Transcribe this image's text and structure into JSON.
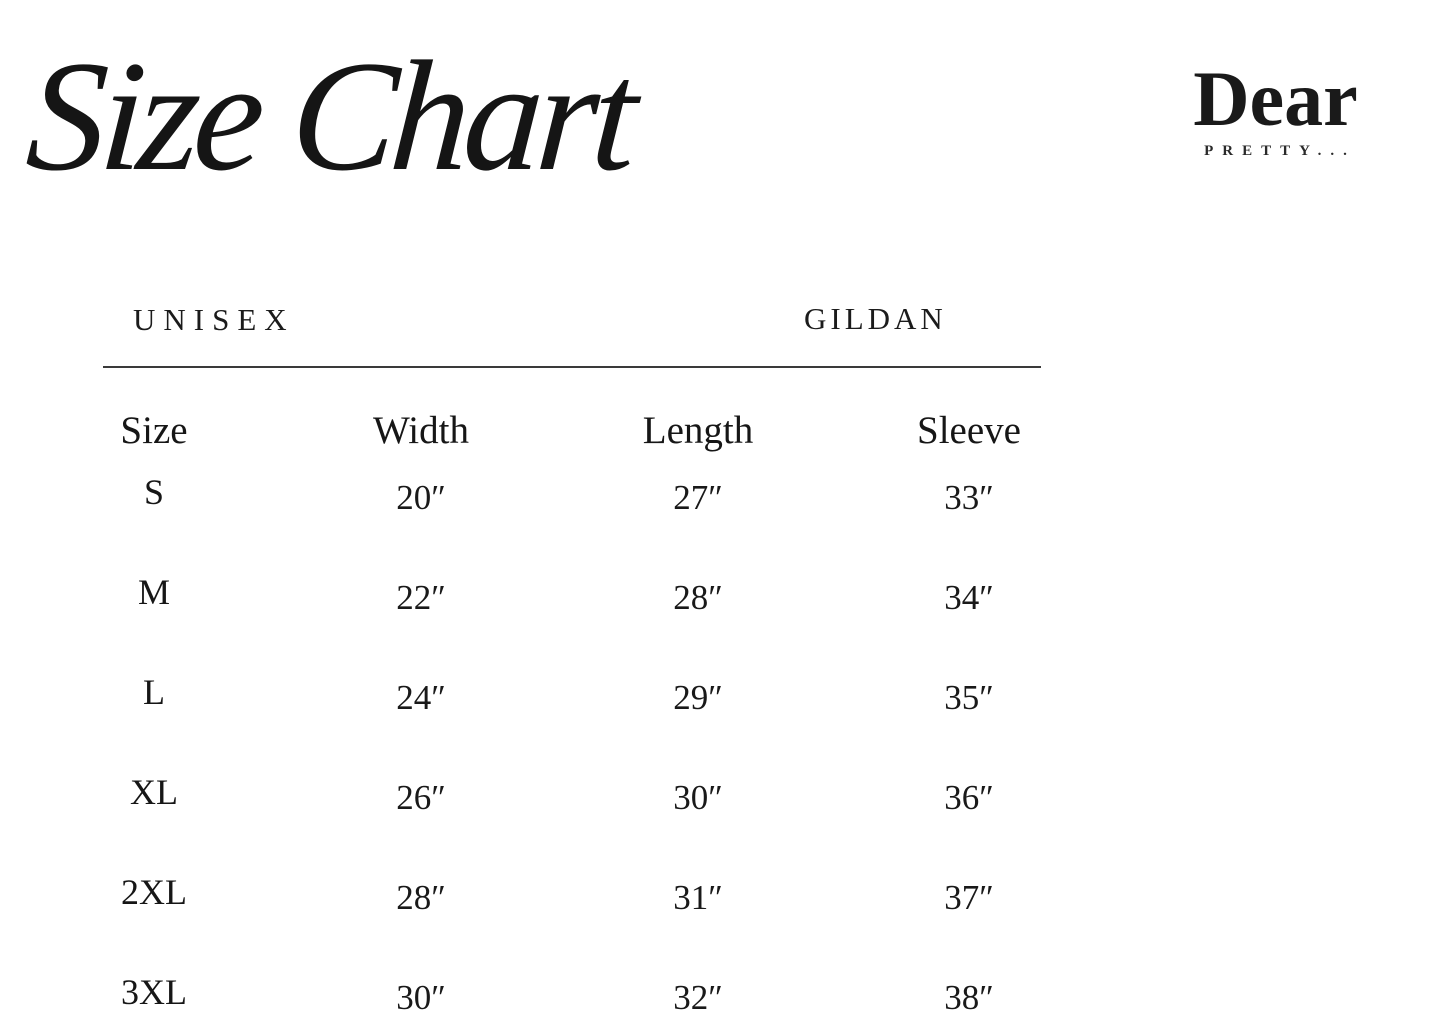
{
  "page": {
    "background": "#ffffff",
    "ink": "#1b1b1b",
    "divider_color": "#3a3a3a"
  },
  "title": "Size Chart",
  "logo": {
    "name": "Dear",
    "tagline": "PRETTY..."
  },
  "table": {
    "category": "UNISEX",
    "brand": "GILDAN",
    "columns": [
      "Size",
      "Width",
      "Length",
      "Sleeve"
    ],
    "rows": [
      {
        "size": "S",
        "width": "20″",
        "length": "27″",
        "sleeve": "33″"
      },
      {
        "size": "M",
        "width": "22″",
        "length": "28″",
        "sleeve": "34″"
      },
      {
        "size": "L",
        "width": "24″",
        "length": "29″",
        "sleeve": "35″"
      },
      {
        "size": "XL",
        "width": "26″",
        "length": "30″",
        "sleeve": "36″"
      },
      {
        "size": "2XL",
        "width": "28″",
        "length": "31″",
        "sleeve": "37″"
      },
      {
        "size": "3XL",
        "width": "30″",
        "length": "32″",
        "sleeve": "38″"
      }
    ]
  }
}
